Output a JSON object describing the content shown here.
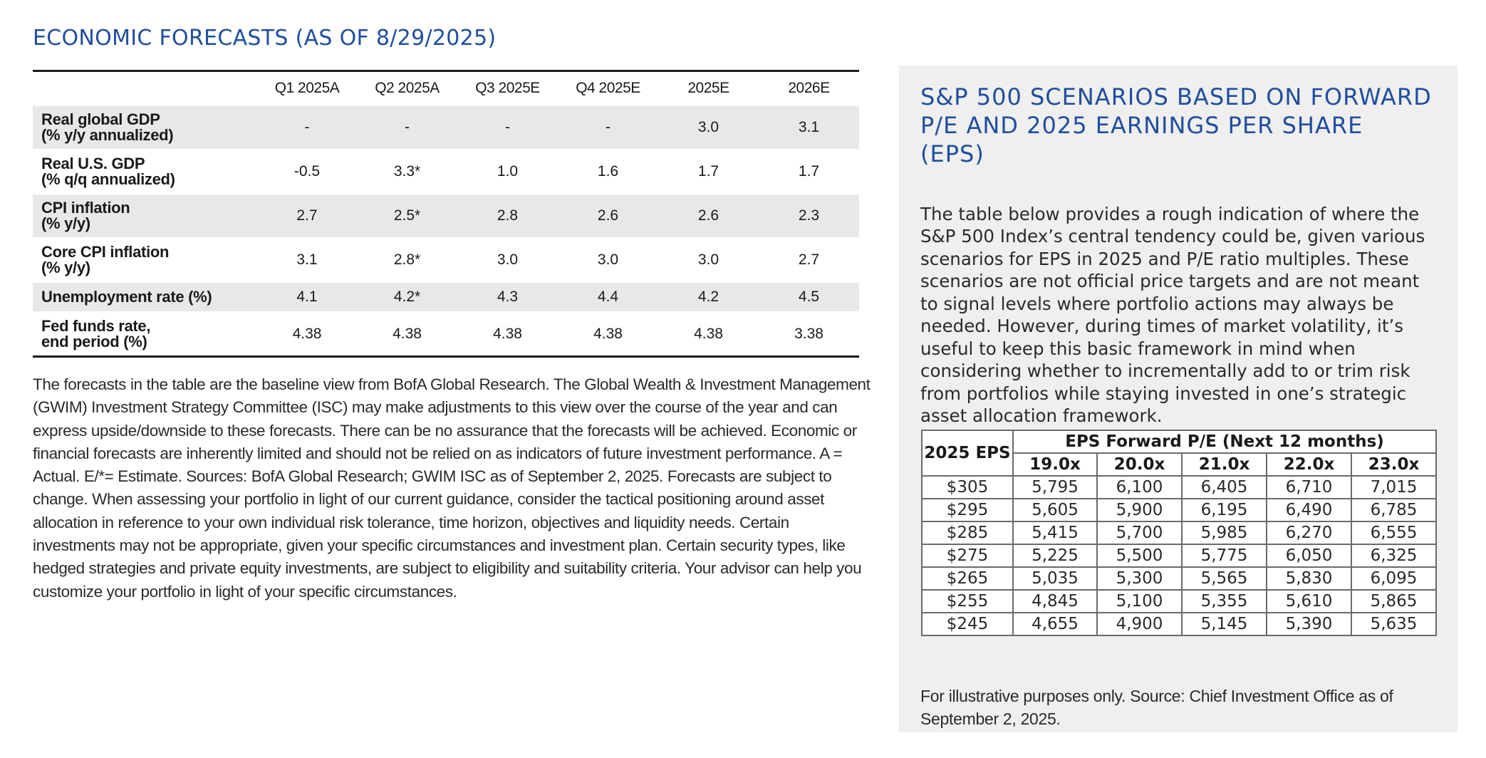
{
  "left": {
    "title": "ECONOMIC FORECASTS (AS OF 8/29/2025)",
    "columns": [
      "Q1 2025A",
      "Q2 2025A",
      "Q3 2025E",
      "Q4 2025E",
      "2025E",
      "2026E"
    ],
    "rows": [
      {
        "label": "Real global GDP",
        "sub": "(% y/y annualized)",
        "values": [
          "-",
          "-",
          "-",
          "-",
          "3.0",
          "3.1"
        ]
      },
      {
        "label": "Real U.S. GDP",
        "sub": "(% q/q annualized)",
        "values": [
          "-0.5",
          "3.3*",
          "1.0",
          "1.6",
          "1.7",
          "1.7"
        ]
      },
      {
        "label": "CPI inflation",
        "sub": "(% y/y)",
        "values": [
          "2.7",
          "2.5*",
          "2.8",
          "2.6",
          "2.6",
          "2.3"
        ]
      },
      {
        "label": "Core CPI inflation",
        "sub": "(% y/y)",
        "values": [
          "3.1",
          "2.8*",
          "3.0",
          "3.0",
          "3.0",
          "2.7"
        ]
      },
      {
        "label": "Unemployment rate (%)",
        "sub": "",
        "values": [
          "4.1",
          "4.2*",
          "4.3",
          "4.4",
          "4.2",
          "4.5"
        ]
      },
      {
        "label": "Fed funds rate,",
        "sub": "end period (%)",
        "values": [
          "4.38",
          "4.38",
          "4.38",
          "4.38",
          "4.38",
          "3.38"
        ]
      }
    ],
    "notes": "The forecasts in the table are the baseline view from BofA Global Research. The Global Wealth & Investment Management (GWIM) Investment Strategy Committee (ISC) may make adjustments to this view over the course of the year and can express upside/downside to these forecasts. There can be no assurance that the forecasts will be achieved. Economic or financial forecasts are inherently limited and should not be relied on as indicators of future investment performance. A = Actual.   E/*= Estimate. Sources: BofA Global Research; GWIM ISC as of September 2, 2025. Forecasts are subject to change. When assessing your portfolio in light of our current guidance, consider the tactical positioning around asset allocation in reference to your own individual risk tolerance, time horizon, objectives and liquidity needs. Certain investments may not be appropriate, given your specific circumstances and investment plan. Certain security types, like hedged strategies and private equity investments, are subject to eligibility and suitability criteria. Your advisor can help you customize your portfolio in light of your specific circumstances."
  },
  "panel": {
    "title": "S&P 500 SCENARIOS BASED ON FORWARD P/E AND 2025 EARNINGS PER SHARE (EPS)",
    "body": "The table below provides a rough indication of where the S&P 500 Index’s central tendency could be, given various scenarios for EPS in 2025 and P/E ratio multiples. These scenarios are not official price targets and are not meant to signal levels where portfolio actions may always be needed. However, during times of market volatility, it’s useful to keep this basic framework in mind when considering whether to incrementally add to or trim risk from portfolios while staying invested in one’s strategic asset allocation framework.",
    "eps_table": {
      "corner": "2025 EPS",
      "group_header": "EPS Forward P/E (Next 12 months)",
      "pe_columns": [
        "19.0x",
        "20.0x",
        "21.0x",
        "22.0x",
        "23.0x"
      ],
      "rows": [
        {
          "eps": "$305",
          "values": [
            "5,795",
            "6,100",
            "6,405",
            "6,710",
            "7,015"
          ]
        },
        {
          "eps": "$295",
          "values": [
            "5,605",
            "5,900",
            "6,195",
            "6,490",
            "6,785"
          ]
        },
        {
          "eps": "$285",
          "values": [
            "5,415",
            "5,700",
            "5,985",
            "6,270",
            "6,555"
          ]
        },
        {
          "eps": "$275",
          "values": [
            "5,225",
            "5,500",
            "5,775",
            "6,050",
            "6,325"
          ]
        },
        {
          "eps": "$265",
          "values": [
            "5,035",
            "5,300",
            "5,565",
            "5,830",
            "6,095"
          ]
        },
        {
          "eps": "$255",
          "values": [
            "4,845",
            "5,100",
            "5,355",
            "5,610",
            "5,865"
          ]
        },
        {
          "eps": "$245",
          "values": [
            "4,655",
            "4,900",
            "5,145",
            "5,390",
            "5,635"
          ]
        }
      ]
    },
    "note": "For illustrative purposes only. Source: Chief Investment Office as of September 2, 2025."
  }
}
